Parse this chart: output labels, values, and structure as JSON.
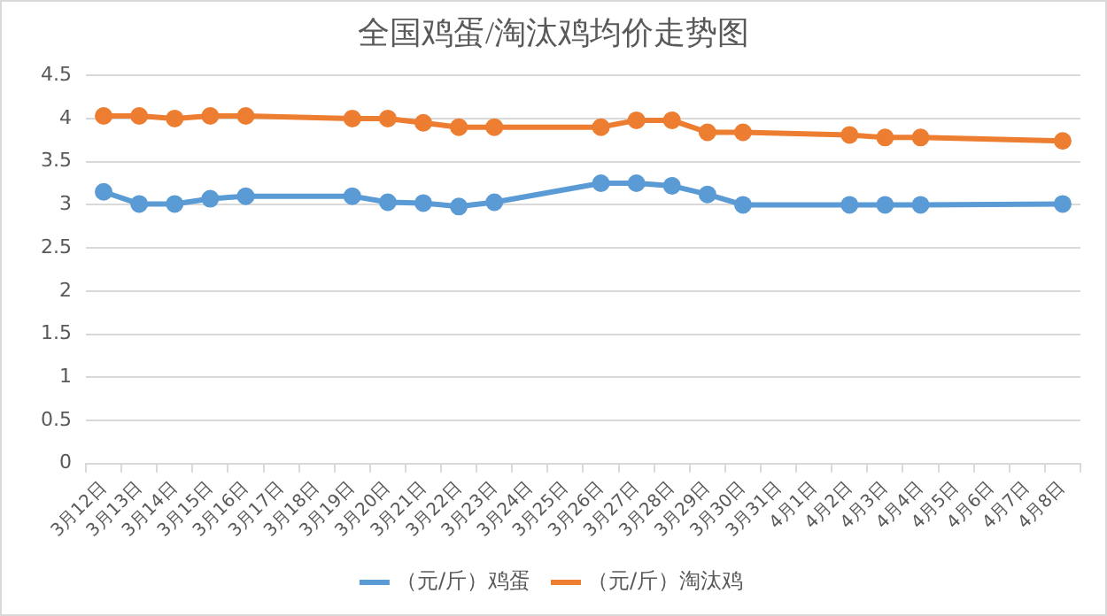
{
  "chart_data": {
    "type": "line",
    "title": "全国鸡蛋/淘汰鸡均价走势图",
    "categories": [
      "3月12日",
      "3月13日",
      "3月14日",
      "3月15日",
      "3月16日",
      "3月17日",
      "3月18日",
      "3月19日",
      "3月20日",
      "3月21日",
      "3月22日",
      "3月23日",
      "3月24日",
      "3月25日",
      "3月26日",
      "3月27日",
      "3月28日",
      "3月29日",
      "3月30日",
      "3月31日",
      "4月1日",
      "4月2日",
      "4月3日",
      "4月4日",
      "4月5日",
      "4月6日",
      "4月7日",
      "4月8日"
    ],
    "series": [
      {
        "name": "（元/斤）鸡蛋",
        "color": "#5b9bd5",
        "values": [
          3.15,
          3.01,
          3.01,
          3.07,
          3.1,
          null,
          null,
          3.1,
          3.03,
          3.02,
          2.98,
          3.03,
          null,
          null,
          3.25,
          3.25,
          3.22,
          3.12,
          3.0,
          null,
          null,
          3.0,
          3.0,
          3.0,
          null,
          null,
          null,
          3.01
        ]
      },
      {
        "name": "（元/斤）淘汰鸡",
        "color": "#ed7d31",
        "values": [
          4.03,
          4.03,
          4.0,
          4.03,
          4.03,
          null,
          null,
          4.0,
          4.0,
          3.95,
          3.9,
          3.9,
          null,
          null,
          3.9,
          3.98,
          3.98,
          3.84,
          3.84,
          null,
          null,
          3.81,
          3.78,
          3.78,
          null,
          null,
          null,
          3.74
        ]
      }
    ],
    "ylim": [
      0,
      4.5
    ],
    "yticks": [
      0,
      0.5,
      1,
      1.5,
      2,
      2.5,
      3,
      3.5,
      4,
      4.5
    ],
    "grid": "y",
    "legend": "bottom",
    "marker": "circle",
    "line_style": "solid"
  }
}
